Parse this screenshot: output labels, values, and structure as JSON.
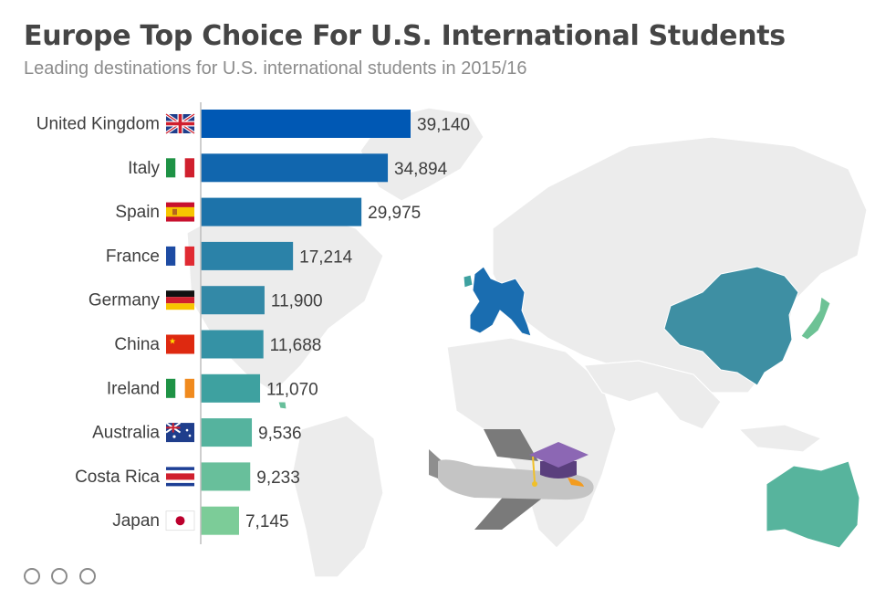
{
  "title": "Europe Top Choice For U.S. International Students",
  "subtitle": "Leading destinations for U.S. international students in 2015/16",
  "colors": {
    "bars": [
      "#0058b4",
      "#1166ae",
      "#1d73aa",
      "#2b82a8",
      "#3389a7",
      "#3592a5",
      "#3ea1a0",
      "#55b39e",
      "#68bf9b",
      "#7ccc98"
    ],
    "europe_map": "#1a6db0",
    "china_map": "#3e8fa3",
    "japan_map": "#6dc295",
    "australia_map": "#57b49d"
  },
  "chart_data": {
    "type": "bar",
    "orientation": "horizontal",
    "title": "Europe Top Choice For U.S. International Students",
    "subtitle": "Leading destinations for U.S. international students in 2015/16",
    "categories": [
      "United Kingdom",
      "Italy",
      "Spain",
      "France",
      "Germany",
      "China",
      "Ireland",
      "Australia",
      "Costa Rica",
      "Japan"
    ],
    "values": [
      39140,
      34894,
      29975,
      17214,
      11900,
      11688,
      11070,
      9536,
      9233,
      7145
    ],
    "value_labels": [
      "39,140",
      "34,894",
      "29,975",
      "17,214",
      "11,900",
      "11,688",
      "11,070",
      "9,536",
      "9,233",
      "7,145"
    ],
    "flags": [
      "uk",
      "italy",
      "spain",
      "france",
      "germany",
      "china",
      "ireland",
      "australia",
      "costa-rica",
      "japan"
    ],
    "xlim": [
      0,
      39140
    ],
    "grid": false,
    "legend": "none"
  },
  "icons": {
    "footer": [
      "creative-commons-icon",
      "attribution-icon",
      "no-derivatives-icon"
    ]
  }
}
